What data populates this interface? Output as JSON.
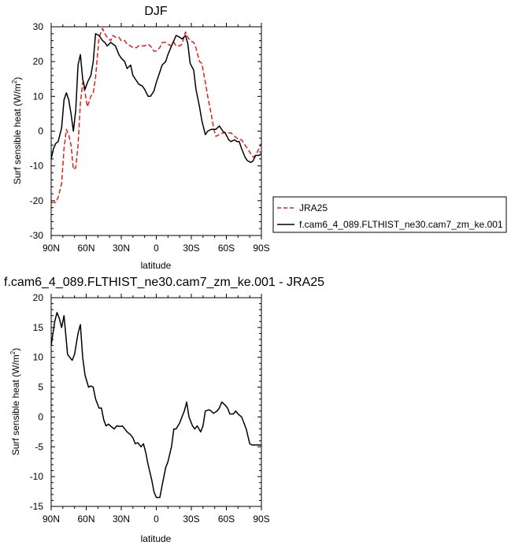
{
  "chart_data": [
    {
      "type": "line",
      "title": "DJF",
      "xlabel": "latitude",
      "ylabel_main": "Surf sensible heat (W/m",
      "ylabel_sup": "2",
      "ylabel_close": ")",
      "xlim": [
        -90,
        90
      ],
      "ylim": [
        -30,
        30
      ],
      "x_ticks": [
        -90,
        -60,
        -30,
        0,
        30,
        60,
        90
      ],
      "x_tick_labels": [
        "90N",
        "60N",
        "30N",
        "0",
        "30S",
        "60S",
        "90S"
      ],
      "y_ticks": [
        -30,
        -20,
        -10,
        0,
        10,
        20,
        30
      ],
      "y_tick_labels": [
        "-30",
        "-20",
        "-10",
        "0",
        "10",
        "20",
        "30"
      ],
      "legend": {
        "position": "right",
        "entries": [
          "JRA25",
          "f.cam6_4_089.FLTHIST_ne30.cam7_zm_ke.001"
        ]
      },
      "series": [
        {
          "name": "JRA25",
          "color": "#e0201b",
          "dash": "dashed",
          "x": [
            -90,
            -86,
            -84,
            -81,
            -79,
            -77,
            -75,
            -73,
            -71,
            -69,
            -67,
            -65,
            -63,
            -61,
            -59,
            -56,
            -54,
            -52,
            -49,
            -46,
            -44,
            -42,
            -39,
            -37,
            -35,
            -32,
            -30,
            -27,
            -25,
            -22,
            -20,
            -17,
            -15,
            -12,
            -10,
            -7,
            -5,
            -2,
            0,
            3,
            5,
            8,
            10,
            13,
            15,
            17,
            20,
            22,
            25,
            27,
            29,
            32,
            34,
            37,
            39,
            42,
            44,
            47,
            49,
            51,
            54,
            57,
            59,
            62,
            64,
            67,
            69,
            71,
            73,
            76,
            78,
            81,
            83,
            85,
            88,
            90
          ],
          "y": [
            -20.5,
            -20.5,
            -19,
            -15,
            -5,
            0.5,
            -1,
            -4,
            -11,
            -10.5,
            -4,
            8,
            14,
            11,
            7,
            10,
            11,
            15.5,
            27,
            29.5,
            28,
            27,
            26,
            27.5,
            27,
            27,
            26,
            26,
            25,
            24.5,
            24,
            24,
            24.5,
            24.5,
            24.5,
            25,
            24.5,
            23,
            23,
            24,
            25.5,
            25.5,
            25,
            24.5,
            25.5,
            24.5,
            24.5,
            25,
            28.5,
            27,
            26,
            25.5,
            24,
            20,
            19.5,
            14,
            10,
            5,
            1,
            -1.5,
            -1,
            -0.5,
            -0.5,
            -0.5,
            -0.5,
            -1.5,
            -2,
            -2.5,
            -2.5,
            -4,
            -5,
            -6.5,
            -7.5,
            -7,
            -5,
            -3.5
          ]
        },
        {
          "name": "f.cam6_4_089.FLTHIST_ne30.cam7_zm_ke.001",
          "color": "#000000",
          "dash": "solid",
          "x": [
            -90,
            -88,
            -86,
            -84,
            -81,
            -79,
            -77,
            -75,
            -73,
            -71,
            -69,
            -67,
            -65,
            -63,
            -61,
            -59,
            -56,
            -54,
            -52,
            -49,
            -46,
            -44,
            -42,
            -39,
            -37,
            -35,
            -32,
            -30,
            -27,
            -25,
            -22,
            -20,
            -17,
            -15,
            -12,
            -10,
            -7,
            -5,
            -2,
            0,
            3,
            5,
            8,
            10,
            13,
            15,
            17,
            20,
            22,
            25,
            27,
            29,
            32,
            34,
            37,
            39,
            42,
            44,
            47,
            49,
            51,
            54,
            57,
            59,
            62,
            64,
            67,
            69,
            71,
            73,
            76,
            78,
            81,
            83,
            85,
            88,
            90
          ],
          "y": [
            -8,
            -5,
            -3.5,
            -3,
            1,
            9,
            11,
            9,
            5,
            0,
            6,
            19,
            22,
            15,
            12,
            14,
            16,
            20,
            28,
            27.5,
            26,
            25.5,
            24.5,
            25.5,
            25,
            24.5,
            22,
            21,
            20,
            18,
            19,
            16,
            14.5,
            13.5,
            13,
            12,
            10,
            10,
            11.5,
            14,
            17,
            19,
            20,
            22,
            24.5,
            26,
            27.5,
            27,
            26.5,
            27.5,
            25,
            19.5,
            17.5,
            12,
            7,
            3,
            -1,
            0,
            0.5,
            0.5,
            0.5,
            1.5,
            0,
            -0.5,
            -2.5,
            -3,
            -2.5,
            -3,
            -3,
            -5,
            -7.5,
            -8.5,
            -9,
            -8.5,
            -7,
            -7,
            -6.5
          ]
        }
      ]
    },
    {
      "type": "line",
      "title": "f.cam6_4_089.FLTHIST_ne30.cam7_zm_ke.001 - JRA25",
      "xlabel": "latitude",
      "ylabel_main": "Surf sensible heat (W/m",
      "ylabel_sup": "2",
      "ylabel_close": ")",
      "xlim": [
        -90,
        90
      ],
      "ylim": [
        -15,
        20
      ],
      "x_ticks": [
        -90,
        -60,
        -30,
        0,
        30,
        60,
        90
      ],
      "x_tick_labels": [
        "90N",
        "60N",
        "30N",
        "0",
        "30S",
        "60S",
        "90S"
      ],
      "y_ticks": [
        -15,
        -10,
        -5,
        0,
        5,
        10,
        15,
        20
      ],
      "y_tick_labels": [
        "-15",
        "-10",
        "-5",
        "0",
        "5",
        "10",
        "15",
        "20"
      ],
      "series": [
        {
          "color": "#000000",
          "dash": "solid",
          "x": [
            -90,
            -87,
            -85,
            -83,
            -81,
            -79,
            -76,
            -74,
            -72,
            -70,
            -67,
            -65,
            -63,
            -61,
            -58,
            -56,
            -54,
            -52,
            -49,
            -47,
            -45,
            -43,
            -41,
            -38,
            -36,
            -34,
            -31,
            -29,
            -27,
            -25,
            -22,
            -20,
            -18,
            -16,
            -13,
            -11,
            -9,
            -7,
            -4,
            -2,
            0,
            3,
            5,
            8,
            10,
            13,
            15,
            17,
            20,
            22,
            24,
            26,
            28,
            31,
            33,
            35,
            38,
            40,
            42,
            45,
            47,
            49,
            52,
            54,
            56,
            59,
            61,
            63,
            66,
            68,
            70,
            73,
            75,
            77,
            80,
            82,
            84,
            87,
            88,
            89,
            90
          ],
          "y": [
            12,
            16,
            17.5,
            16.5,
            15,
            17,
            10.5,
            10,
            9.5,
            10.5,
            14,
            15.5,
            10,
            7,
            5,
            5.2,
            5,
            3,
            1.5,
            1.5,
            -0.5,
            -1.5,
            -1.2,
            -1.7,
            -2,
            -1.5,
            -1.6,
            -1.5,
            -2,
            -2.5,
            -3,
            -3.5,
            -4.5,
            -4.3,
            -5,
            -4.5,
            -6,
            -8,
            -10.5,
            -12.5,
            -13.5,
            -13.5,
            -11.5,
            -8.5,
            -7.5,
            -5,
            -2,
            -2,
            -1,
            0,
            1,
            2.5,
            0,
            -1.5,
            -2,
            -1.5,
            -2.5,
            -1.5,
            1,
            1.2,
            1,
            0.6,
            1,
            1.5,
            2.5,
            2,
            1.5,
            0.5,
            0.5,
            1,
            0.5,
            0,
            -1,
            -2,
            -4.5,
            -4.7,
            -4.7,
            -4.7,
            -4.7,
            -4.7,
            -4.7
          ]
        }
      ]
    }
  ]
}
